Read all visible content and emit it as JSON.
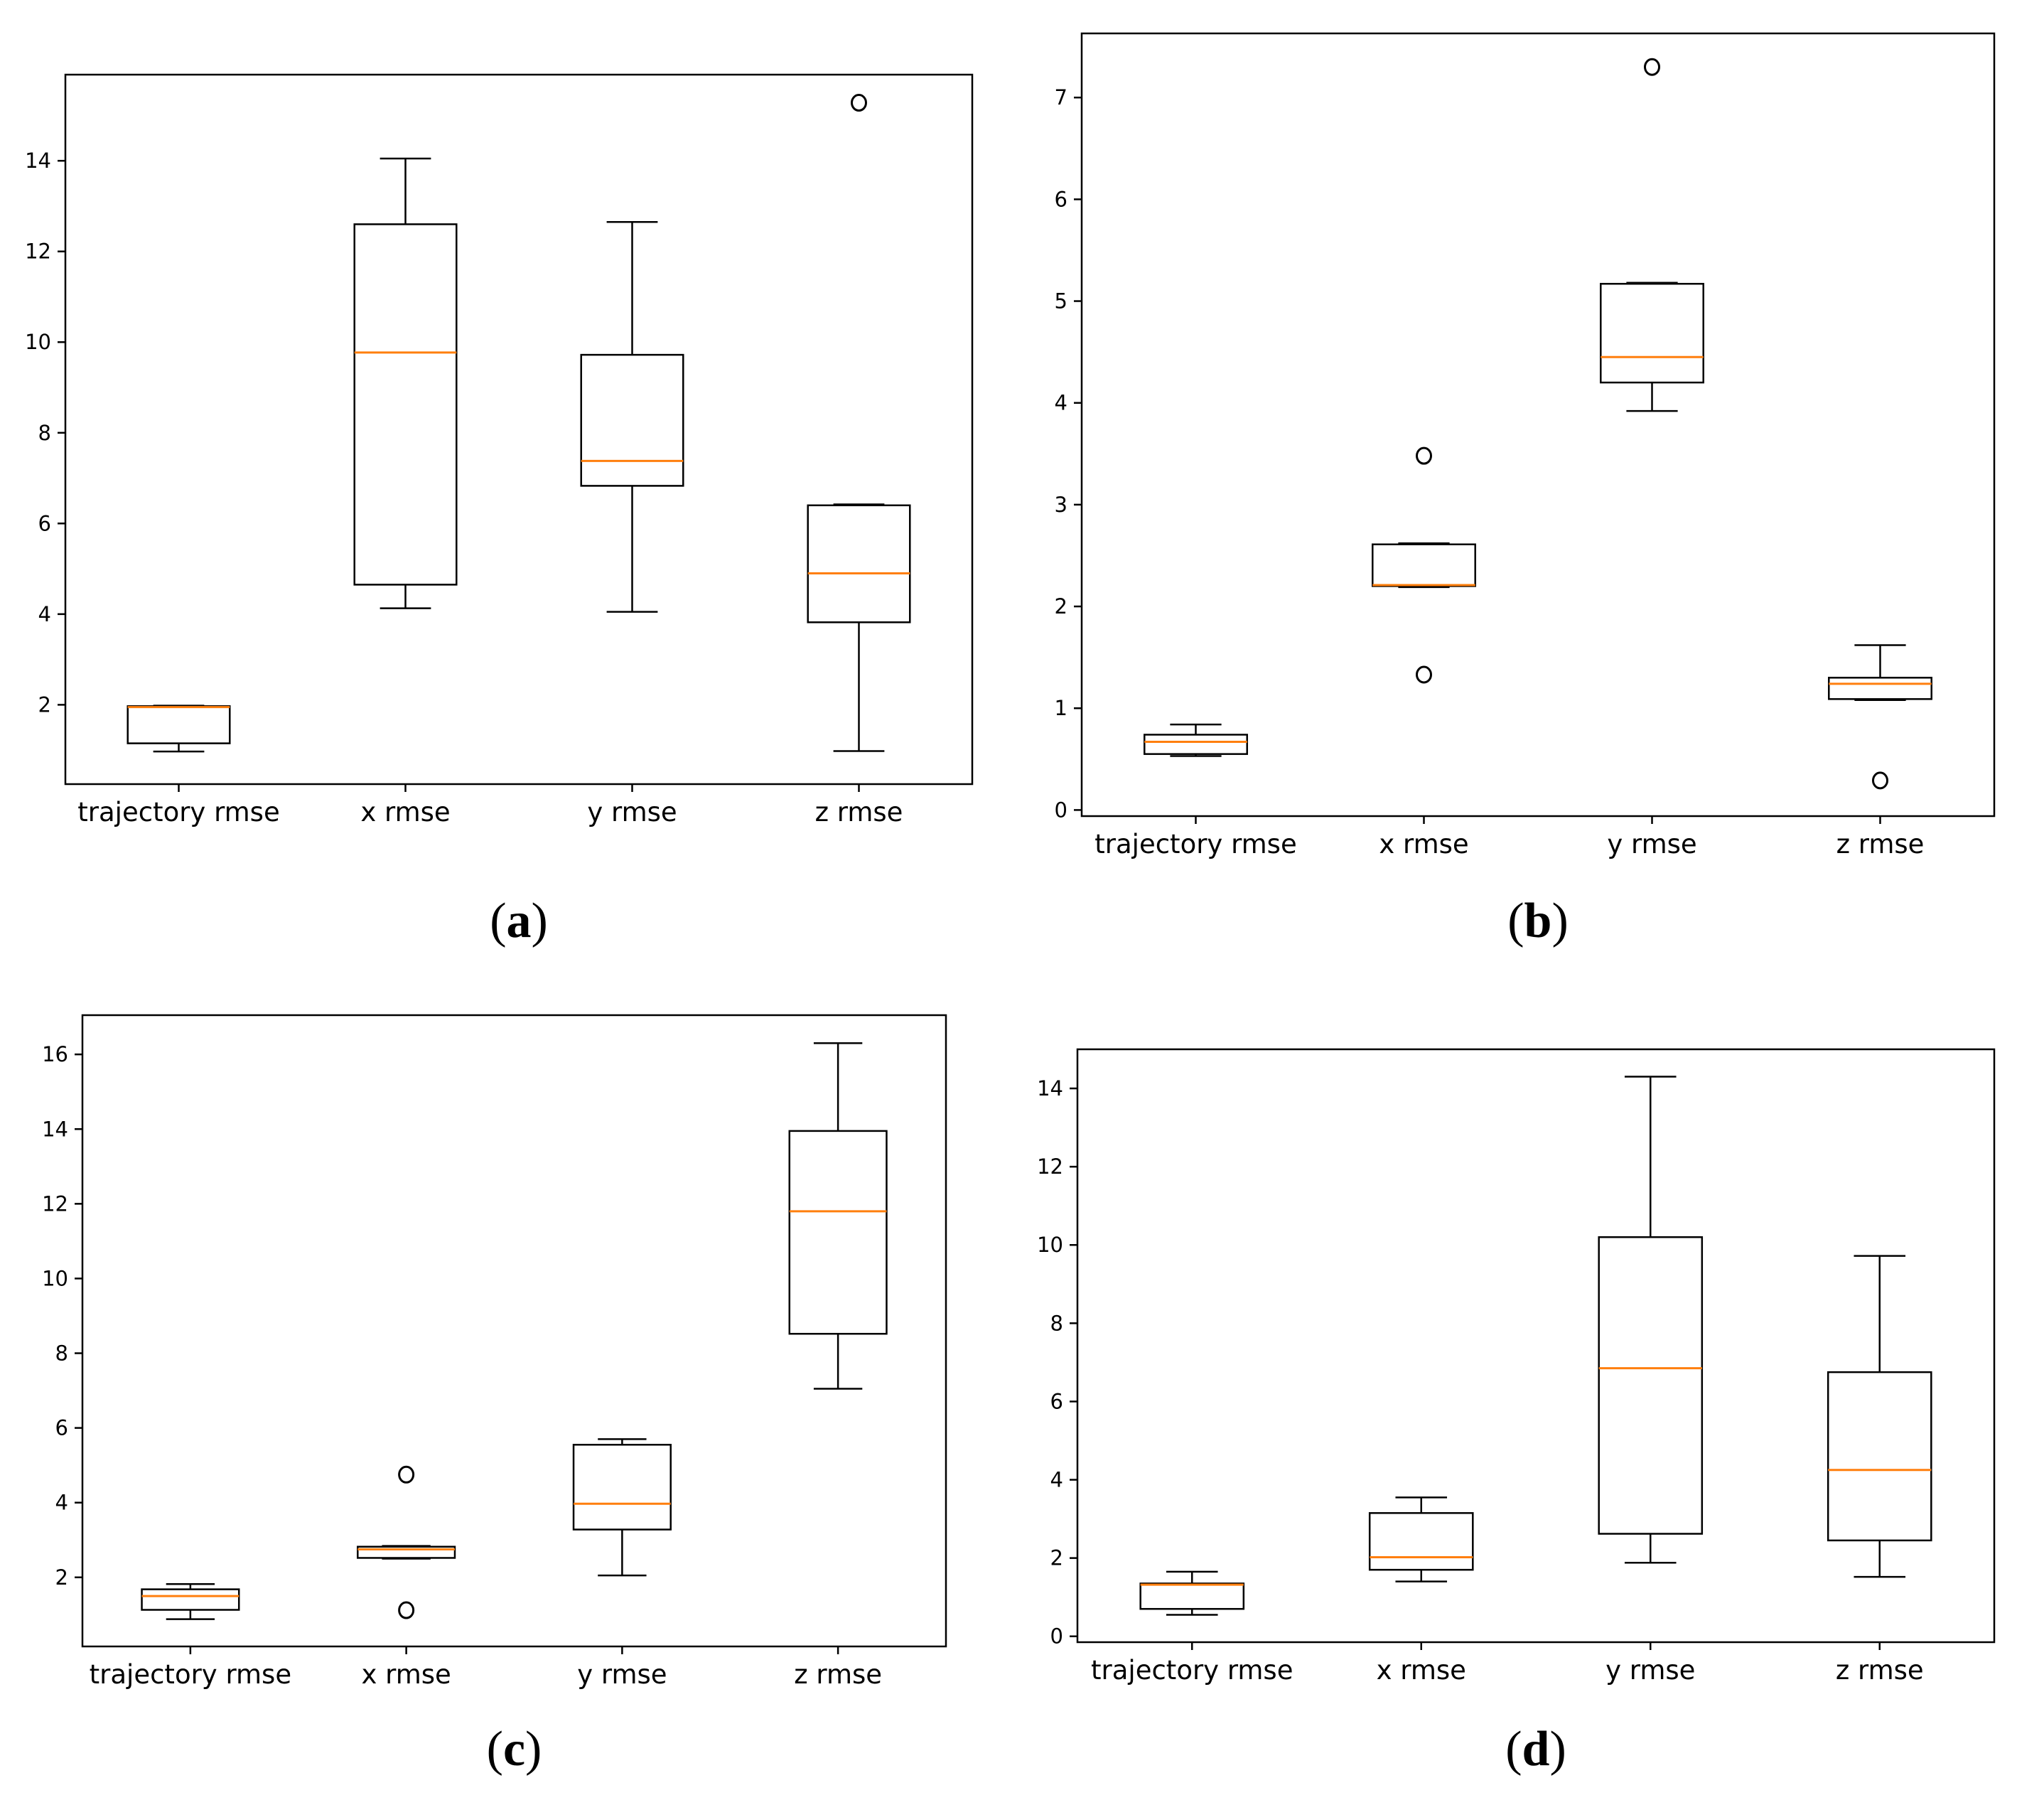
{
  "colors": {
    "box": "#000000",
    "median": "#ff7f0e",
    "frame": "#000000"
  },
  "categories": [
    "trajectory rmse",
    "x rmse",
    "y rmse",
    "z rmse"
  ],
  "chart_data": [
    {
      "type": "boxplot",
      "panel_label": "a",
      "title": "",
      "xlabel": "",
      "ylabel": "",
      "ylim": [
        0.25,
        15.9
      ],
      "yticks": [
        2,
        4,
        6,
        8,
        10,
        12,
        14
      ],
      "grid": false,
      "boxes": [
        {
          "category": "trajectory rmse",
          "whislo": 0.97,
          "q1": 1.15,
          "med": 1.95,
          "q3": 1.97,
          "whishi": 1.98,
          "fliers": []
        },
        {
          "category": "x rmse",
          "whislo": 4.13,
          "q1": 4.65,
          "med": 9.77,
          "q3": 12.6,
          "whishi": 14.05,
          "fliers": []
        },
        {
          "category": "y rmse",
          "whislo": 4.05,
          "q1": 6.83,
          "med": 7.38,
          "q3": 9.72,
          "whishi": 12.65,
          "fliers": []
        },
        {
          "category": "z rmse",
          "whislo": 0.98,
          "q1": 3.82,
          "med": 4.9,
          "q3": 6.4,
          "whishi": 6.42,
          "fliers": [
            15.28
          ]
        }
      ]
    },
    {
      "type": "boxplot",
      "panel_label": "b",
      "title": "",
      "xlabel": "",
      "ylabel": "",
      "ylim": [
        -0.06,
        7.63
      ],
      "yticks": [
        0,
        1,
        2,
        3,
        4,
        5,
        6,
        7
      ],
      "grid": false,
      "boxes": [
        {
          "category": "trajectory rmse",
          "whislo": 0.53,
          "q1": 0.55,
          "med": 0.67,
          "q3": 0.74,
          "whishi": 0.84,
          "fliers": []
        },
        {
          "category": "x rmse",
          "whislo": 2.19,
          "q1": 2.2,
          "med": 2.21,
          "q3": 2.61,
          "whishi": 2.62,
          "fliers": [
            1.33,
            3.48
          ]
        },
        {
          "category": "y rmse",
          "whislo": 3.92,
          "q1": 4.2,
          "med": 4.45,
          "q3": 5.17,
          "whishi": 5.18,
          "fliers": [
            7.3
          ]
        },
        {
          "category": "z rmse",
          "whislo": 1.08,
          "q1": 1.09,
          "med": 1.24,
          "q3": 1.3,
          "whishi": 1.62,
          "fliers": [
            0.29
          ]
        }
      ]
    },
    {
      "type": "boxplot",
      "panel_label": "c",
      "title": "",
      "xlabel": "",
      "ylabel": "",
      "ylim": [
        0.15,
        17.05
      ],
      "yticks": [
        2,
        4,
        6,
        8,
        10,
        12,
        14,
        16
      ],
      "grid": false,
      "boxes": [
        {
          "category": "trajectory rmse",
          "whislo": 0.88,
          "q1": 1.13,
          "med": 1.5,
          "q3": 1.68,
          "whishi": 1.82,
          "fliers": []
        },
        {
          "category": "x rmse",
          "whislo": 2.5,
          "q1": 2.52,
          "med": 2.75,
          "q3": 2.82,
          "whishi": 2.84,
          "fliers": [
            1.12,
            4.75
          ]
        },
        {
          "category": "y rmse",
          "whislo": 2.05,
          "q1": 3.28,
          "med": 3.97,
          "q3": 5.55,
          "whishi": 5.7,
          "fliers": []
        },
        {
          "category": "z rmse",
          "whislo": 7.05,
          "q1": 8.52,
          "med": 11.8,
          "q3": 13.95,
          "whishi": 16.3,
          "fliers": []
        }
      ]
    },
    {
      "type": "boxplot",
      "panel_label": "d",
      "title": "",
      "xlabel": "",
      "ylabel": "",
      "ylim": [
        -0.15,
        15.0
      ],
      "yticks": [
        0,
        2,
        4,
        6,
        8,
        10,
        12,
        14
      ],
      "grid": false,
      "boxes": [
        {
          "category": "trajectory rmse",
          "whislo": 0.55,
          "q1": 0.7,
          "med": 1.32,
          "q3": 1.35,
          "whishi": 1.65,
          "fliers": []
        },
        {
          "category": "x rmse",
          "whislo": 1.4,
          "q1": 1.7,
          "med": 2.02,
          "q3": 3.15,
          "whishi": 3.55,
          "fliers": []
        },
        {
          "category": "y rmse",
          "whislo": 1.88,
          "q1": 2.62,
          "med": 6.85,
          "q3": 10.2,
          "whishi": 14.3,
          "fliers": []
        },
        {
          "category": "z rmse",
          "whislo": 1.52,
          "q1": 2.45,
          "med": 4.25,
          "q3": 6.75,
          "whishi": 9.72,
          "fliers": []
        }
      ]
    }
  ]
}
